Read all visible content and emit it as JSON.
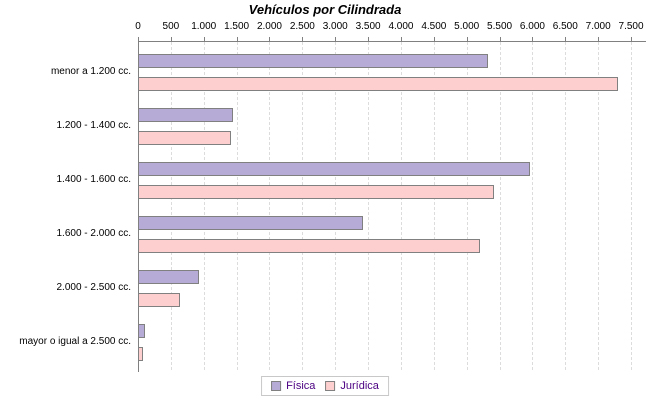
{
  "title": "Vehículos por Cilindrada",
  "chart_data": {
    "type": "bar",
    "orientation": "horizontal",
    "title": "Vehículos por Cilindrada",
    "categories": [
      "menor a 1.200 cc.",
      "1.200 - 1.400 cc.",
      "1.400 - 1.600 cc.",
      "1.600 - 2.000 cc.",
      "2.000 - 2.500 cc.",
      "mayor o igual a 2.500 cc."
    ],
    "series": [
      {
        "name": "Física",
        "color": "#b5abd6",
        "values": [
          5320,
          1440,
          5960,
          3420,
          930,
          105
        ]
      },
      {
        "name": "Jurídica",
        "color": "#fdcfce",
        "values": [
          7300,
          1420,
          5410,
          5200,
          640,
          80
        ]
      }
    ],
    "xlim": [
      0,
      7500
    ],
    "x_tick_step": 500,
    "x_tick_labels": [
      "0",
      "500",
      "1.000",
      "1.500",
      "2.000",
      "2.500",
      "3.000",
      "3.500",
      "4.000",
      "4.500",
      "5.000",
      "5.500",
      "6.000",
      "6.500",
      "7.000",
      "7.500"
    ],
    "grid": "vertical-dashed",
    "legend_position": "bottom"
  },
  "legend": {
    "items": [
      {
        "label": "Física",
        "color": "#b5abd6"
      },
      {
        "label": "Jurídica",
        "color": "#fdcfce"
      }
    ]
  },
  "colors": {
    "bar_border": "#808080",
    "axis_line": "#808080",
    "gridline": "#dcdcdc",
    "legend_text": "#4b0082",
    "legend_border": "#c8c8c8",
    "title": "#000000"
  }
}
